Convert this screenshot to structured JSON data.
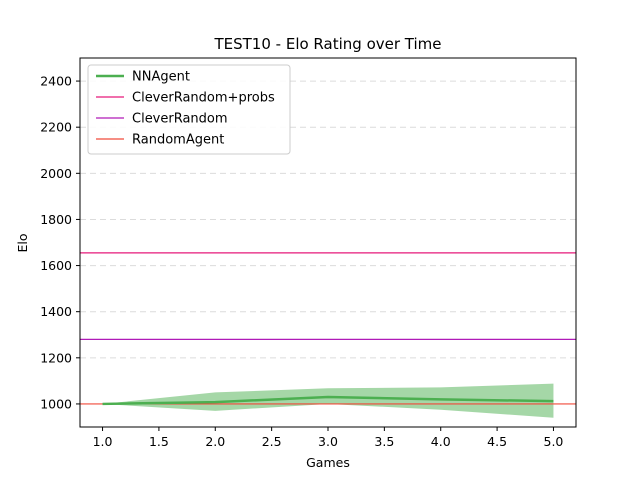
{
  "chart_data": {
    "type": "line",
    "title": "TEST10 - Elo Rating over Time",
    "xlabel": "Games",
    "ylabel": "Elo",
    "xlim": [
      0.8,
      5.2
    ],
    "ylim": [
      900,
      2500
    ],
    "xticks": [
      1.0,
      1.5,
      2.0,
      2.5,
      3.0,
      3.5,
      4.0,
      4.5,
      5.0
    ],
    "xtick_labels": [
      "1.0",
      "1.5",
      "2.0",
      "2.5",
      "3.0",
      "3.5",
      "4.0",
      "4.5",
      "5.0"
    ],
    "yticks": [
      1000,
      1200,
      1400,
      1600,
      1800,
      2000,
      2200,
      2400
    ],
    "ytick_labels": [
      "1000",
      "1200",
      "1400",
      "1600",
      "1800",
      "2000",
      "2200",
      "2400"
    ],
    "grid": "horizontal dashed",
    "legend_position": "top-left",
    "series": [
      {
        "name": "NNAgent",
        "kind": "line",
        "color": "#4caf50",
        "x": [
          1,
          2,
          3,
          4,
          5
        ],
        "y": [
          1000,
          1008,
          1030,
          1020,
          1012
        ],
        "band_lower": [
          1000,
          970,
          1000,
          975,
          940
        ],
        "band_upper": [
          1000,
          1050,
          1068,
          1072,
          1088
        ]
      },
      {
        "name": "CleverRandom+probs",
        "kind": "hline",
        "color": "#e6197a",
        "y": 1655
      },
      {
        "name": "CleverRandom",
        "kind": "hline",
        "color": "#b01bb8",
        "y": 1280
      },
      {
        "name": "RandomAgent",
        "kind": "hline",
        "color": "#f04a3a",
        "y": 1000
      }
    ]
  }
}
